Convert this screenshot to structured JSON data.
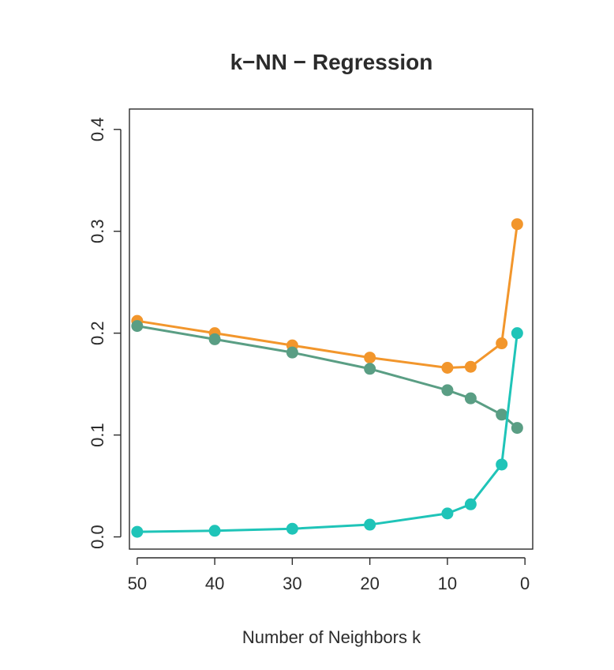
{
  "chart_data": {
    "type": "line",
    "title": "k−NN − Regression",
    "xlabel": "Number of Neighbors k",
    "ylabel": "",
    "x_reversed": true,
    "xlim": [
      51,
      -1
    ],
    "ylim": [
      -0.012,
      0.42
    ],
    "x_ticks": [
      50,
      40,
      30,
      20,
      10,
      0
    ],
    "x_tick_labels": [
      "50",
      "40",
      "30",
      "20",
      "10",
      "0"
    ],
    "y_ticks": [
      0.0,
      0.1,
      0.2,
      0.3,
      0.4
    ],
    "y_tick_labels": [
      "0.0",
      "0.1",
      "0.2",
      "0.3",
      "0.4"
    ],
    "grid": false,
    "legend": "none",
    "x": [
      50,
      40,
      30,
      20,
      10,
      7,
      3,
      1
    ],
    "series": [
      {
        "color": "#f2962c",
        "values": [
          0.212,
          0.2,
          0.188,
          0.176,
          0.166,
          0.167,
          0.19,
          0.307
        ]
      },
      {
        "color": "#5a9e84",
        "values": [
          0.207,
          0.194,
          0.181,
          0.165,
          0.144,
          0.136,
          0.12,
          0.107
        ]
      },
      {
        "color": "#1fc4b8",
        "values": [
          0.005,
          0.006,
          0.008,
          0.012,
          0.023,
          0.032,
          0.071,
          0.2
        ]
      }
    ]
  }
}
